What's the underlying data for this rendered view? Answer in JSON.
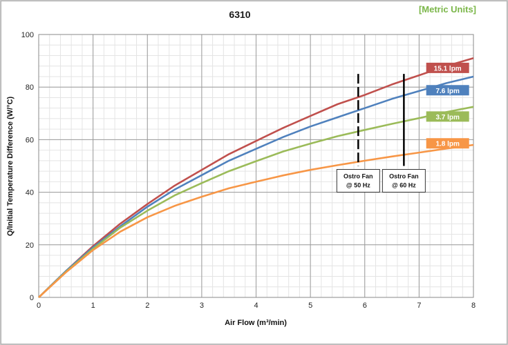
{
  "chart_data": {
    "type": "line",
    "title": "6310",
    "units_note": "[Metric Units]",
    "xlabel": "Air Flow (m³/min)",
    "ylabel": "Q/Initial Temperature Difference (W/°C)",
    "xlim": [
      0,
      8
    ],
    "ylim": [
      0,
      100
    ],
    "x_ticks": [
      "0",
      "1",
      "2",
      "3",
      "4",
      "5",
      "6",
      "7",
      "8"
    ],
    "y_ticks": [
      "0",
      "20",
      "40",
      "60",
      "80",
      "100"
    ],
    "grid": true,
    "x": [
      0,
      0.5,
      1,
      1.5,
      2,
      2.5,
      3,
      3.5,
      4,
      4.5,
      5,
      5.5,
      6,
      6.5,
      7,
      7.5,
      8
    ],
    "series": [
      {
        "name": "15.1 lpm",
        "color": "#c0504d",
        "values": [
          0,
          10,
          19.5,
          28,
          35.5,
          42.5,
          48.5,
          54.5,
          59.5,
          64.5,
          69,
          73.5,
          77,
          81,
          84.5,
          88,
          91
        ]
      },
      {
        "name": "7.6 lpm",
        "color": "#4f81bd",
        "values": [
          0,
          10,
          19,
          27,
          34.5,
          41,
          46.5,
          52,
          56.5,
          61,
          65,
          68.5,
          72,
          75.5,
          78.5,
          81.5,
          84
        ]
      },
      {
        "name": "3.7 lpm",
        "color": "#9bbb59",
        "values": [
          0,
          9.7,
          18.5,
          26.5,
          33,
          38.8,
          43.5,
          48,
          51.8,
          55.5,
          58.5,
          61.3,
          63.7,
          66,
          68.2,
          70.5,
          72.5
        ]
      },
      {
        "name": "1.8 lpm",
        "color": "#f79646",
        "values": [
          0,
          9.5,
          18,
          25,
          30.5,
          34.8,
          38.3,
          41.5,
          44,
          46.4,
          48.5,
          50.3,
          52,
          53.6,
          55.1,
          56.6,
          58
        ]
      }
    ],
    "annotations": [
      {
        "label_line1": "Ostro Fan",
        "label_line2": "@ 50 Hz",
        "x": 5.88,
        "y_from": 50,
        "y_to": 85,
        "style": "dashed"
      },
      {
        "label_line1": "Ostro Fan",
        "label_line2": "@ 60 Hz",
        "x": 6.72,
        "y_from": 50,
        "y_to": 85,
        "style": "solid"
      }
    ]
  }
}
